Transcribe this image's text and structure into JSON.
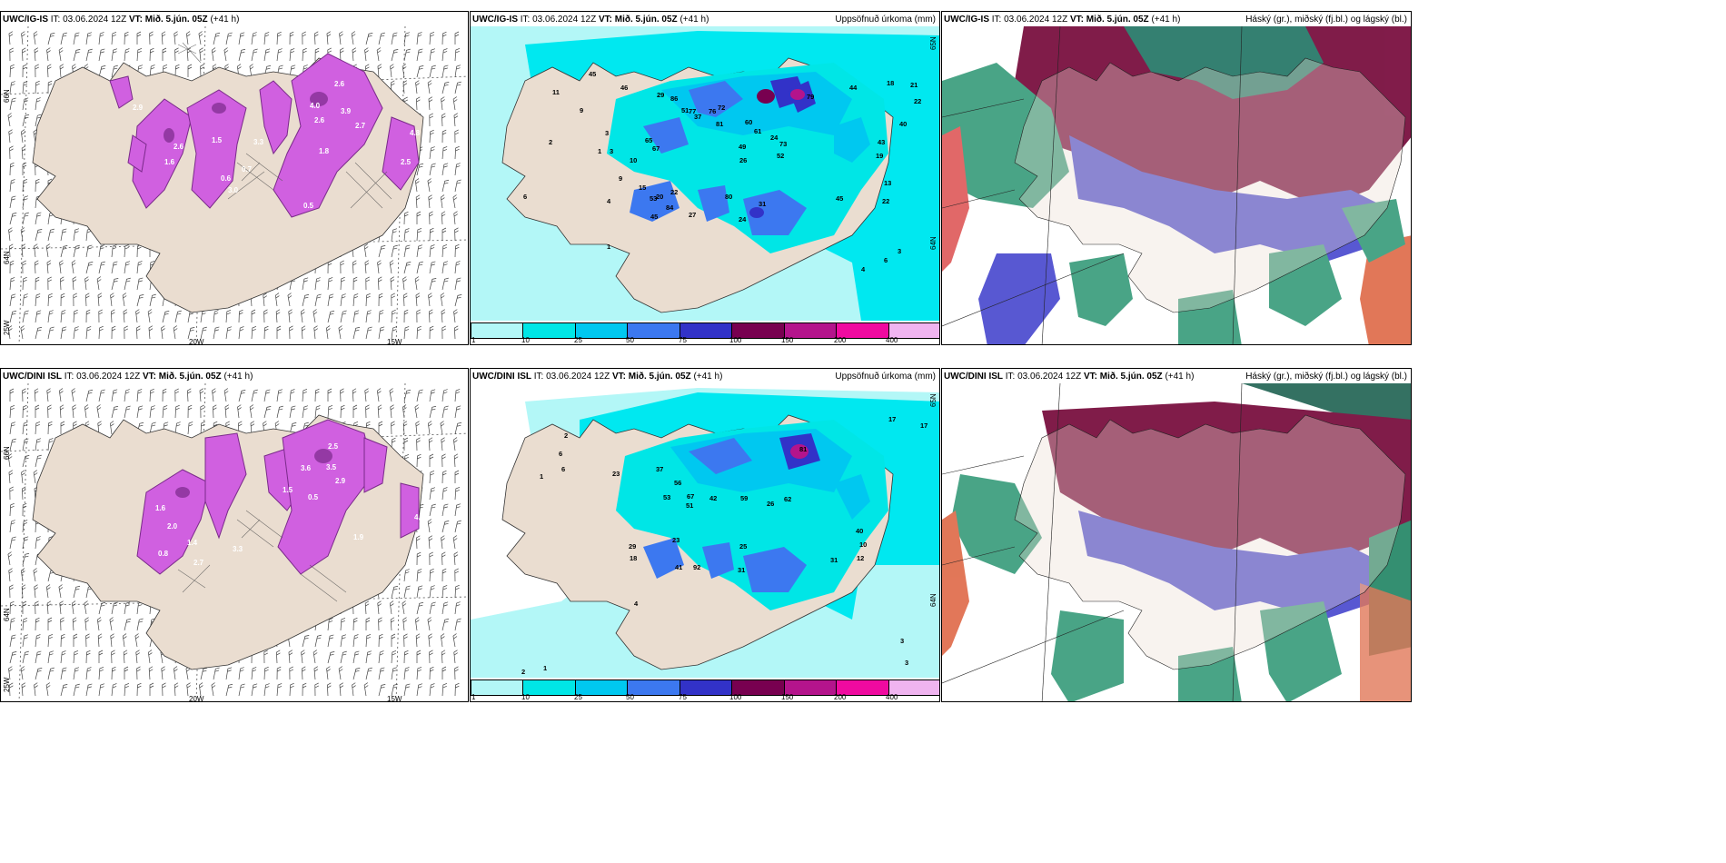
{
  "panels": [
    {
      "model": "UWC/IG-IS",
      "init_label": "IT:",
      "init": "03.06.2024 12Z",
      "valid_label": "VT:",
      "valid": "Mið. 5.jún. 05Z",
      "lead": "(+41 h)",
      "right": ""
    },
    {
      "model": "UWC/IG-IS",
      "init_label": "IT:",
      "init": "03.06.2024 12Z",
      "valid_label": "VT:",
      "valid": "Mið. 5.jún. 05Z",
      "lead": "(+41 h)",
      "right": "Uppsöfnuð úrkoma (mm)"
    },
    {
      "model": "UWC/IG-IS",
      "init_label": "IT:",
      "init": "03.06.2024 12Z",
      "valid_label": "VT:",
      "valid": "Mið. 5.jún. 05Z",
      "lead": "(+41 h)",
      "right": "Háský (gr.), miðský (fj.bl.) og lágský (bl.)"
    },
    {
      "model": "UWC/DINI ISL",
      "init_label": "IT:",
      "init": "03.06.2024 12Z",
      "valid_label": "VT:",
      "valid": "Mið. 5.jún. 05Z",
      "lead": "(+41 h)",
      "right": ""
    },
    {
      "model": "UWC/DINI ISL",
      "init_label": "IT:",
      "init": "03.06.2024 12Z",
      "valid_label": "VT:",
      "valid": "Mið. 5.jún. 05Z",
      "lead": "(+41 h)",
      "right": "Uppsöfnuð úrkoma (mm)"
    },
    {
      "model": "UWC/DINI ISL",
      "init_label": "IT:",
      "init": "03.06.2024 12Z",
      "valid_label": "VT:",
      "valid": "Mið. 5.jún. 05Z",
      "lead": "(+41 h)",
      "right": "Háský (gr.), miðský (fj.bl.) og lágský (bl.)"
    }
  ],
  "grid_labels": {
    "lat_66": "66N",
    "lat_64": "64N",
    "lat_25w": "25W",
    "lon_20w": "20W",
    "lon_15w": "15W",
    "lat_65": "65N"
  },
  "colorbar": {
    "ticks": [
      "1",
      "10",
      "25",
      "50",
      "75",
      "100",
      "150",
      "200",
      "400"
    ],
    "colors": [
      "#b3f7f7",
      "#00e6e6",
      "#00c8f0",
      "#3c78f0",
      "#3232c8",
      "#780050",
      "#b4148c",
      "#f00aa0",
      "#f0b4f0"
    ]
  },
  "precip_top_labels": [
    "45",
    "11",
    "9",
    "3",
    "46",
    "29",
    "86",
    "51",
    "65",
    "67",
    "77",
    "37",
    "72",
    "76",
    "81",
    "61",
    "49",
    "60",
    "26",
    "24",
    "73",
    "52",
    "79",
    "44",
    "18",
    "21",
    "22",
    "40",
    "43",
    "19",
    "13",
    "22",
    "20",
    "22",
    "45",
    "27",
    "80",
    "24",
    "31",
    "45",
    "53",
    "84",
    "10",
    "15",
    "9",
    "3",
    "1",
    "6",
    "4",
    "1",
    "2",
    "4",
    "6",
    "3"
  ],
  "precip_bottom_labels": [
    "2",
    "6",
    "6",
    "1",
    "23",
    "37",
    "56",
    "67",
    "51",
    "42",
    "53",
    "59",
    "26",
    "62",
    "81",
    "25",
    "31",
    "17",
    "17",
    "29",
    "23",
    "18",
    "92",
    "41",
    "4",
    "10",
    "12",
    "31",
    "40",
    "3",
    "3",
    "2",
    "1",
    "2"
  ],
  "wind_top_labels": [
    "2.9",
    "2.6",
    "4.0",
    "3.9",
    "2.6",
    "2.7",
    "3.3",
    "1.5",
    "1.8",
    "3.0",
    "0.5",
    "2.6",
    "0.7",
    "1.6",
    "0.6",
    "2.5",
    "4.8"
  ],
  "wind_bottom_labels": [
    "2.5",
    "3.5",
    "2.9",
    "1.5",
    "3.3",
    "0.8",
    "2.0",
    "1.4",
    "2.7",
    "0.5",
    "3.6",
    "1.6",
    "4.8",
    "1.9"
  ],
  "colors": {
    "land": "#eaddd0",
    "magenta": "#d060e0",
    "magenta_dark": "#7a2a8a",
    "sea_cyan": "#00e8f0",
    "cloud_high": "#7a1040",
    "cloud_mid": "#5050d0",
    "cloud_low": "#40a080"
  }
}
